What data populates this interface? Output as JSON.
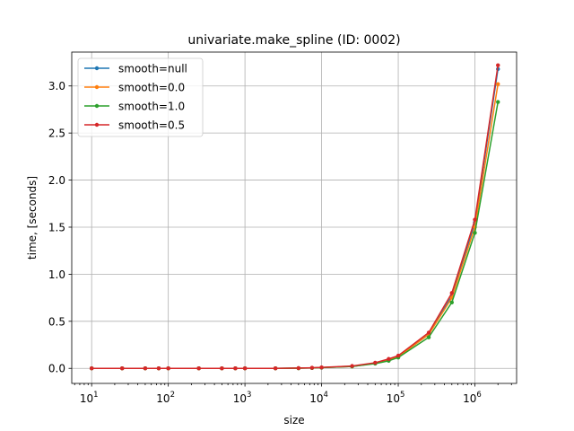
{
  "chart_data": {
    "type": "line",
    "title": "univariate.make_spline (ID: 0002)",
    "xlabel": "size",
    "ylabel": "time, [seconds]",
    "xscale": "log",
    "xlim": [
      5.5,
      3500000
    ],
    "ylim": [
      -0.16,
      3.36
    ],
    "grid": true,
    "legend_position": "upper left",
    "x_tick_labels": [
      {
        "value": 10,
        "base": "10",
        "exp": "1"
      },
      {
        "value": 100,
        "base": "10",
        "exp": "2"
      },
      {
        "value": 1000,
        "base": "10",
        "exp": "3"
      },
      {
        "value": 10000,
        "base": "10",
        "exp": "4"
      },
      {
        "value": 100000,
        "base": "10",
        "exp": "5"
      },
      {
        "value": 1000000,
        "base": "10",
        "exp": "6"
      }
    ],
    "y_ticks": [
      0.0,
      0.5,
      1.0,
      1.5,
      2.0,
      2.5,
      3.0
    ],
    "y_tick_labels": [
      "0.0",
      "0.5",
      "1.0",
      "1.5",
      "2.0",
      "2.5",
      "3.0"
    ],
    "x": [
      10,
      25,
      50,
      75,
      100,
      250,
      500,
      750,
      1000,
      2500,
      5000,
      7500,
      10000,
      25000,
      50000,
      75000,
      100000,
      250000,
      500000,
      1000000,
      2000000
    ],
    "series": [
      {
        "name": "smooth=null",
        "color": "#1f77b4",
        "values": [
          0.0,
          0.0,
          0.0,
          0.0,
          0.0,
          0.0,
          0.0,
          0.0,
          0.0,
          0.0,
          0.002,
          0.004,
          0.008,
          0.02,
          0.055,
          0.09,
          0.125,
          0.36,
          0.77,
          1.55,
          3.18
        ]
      },
      {
        "name": "smooth=0.0",
        "color": "#ff7f0e",
        "values": [
          0.0,
          0.0,
          0.0,
          0.0,
          0.0,
          0.0,
          0.0,
          0.0,
          0.0,
          0.0,
          0.002,
          0.004,
          0.008,
          0.02,
          0.055,
          0.09,
          0.125,
          0.36,
          0.75,
          1.5,
          3.02
        ]
      },
      {
        "name": "smooth=1.0",
        "color": "#2ca02c",
        "values": [
          0.0,
          0.0,
          0.0,
          0.0,
          0.0,
          0.0,
          0.0,
          0.0,
          0.0,
          0.0,
          0.002,
          0.004,
          0.008,
          0.02,
          0.05,
          0.08,
          0.115,
          0.33,
          0.7,
          1.44,
          2.83
        ]
      },
      {
        "name": "smooth=0.5",
        "color": "#d62728",
        "values": [
          0.0,
          0.0,
          0.0,
          0.0,
          0.0,
          0.0,
          0.0,
          0.0,
          0.0,
          0.0,
          0.003,
          0.006,
          0.01,
          0.025,
          0.06,
          0.1,
          0.135,
          0.38,
          0.8,
          1.58,
          3.22
        ]
      }
    ]
  }
}
